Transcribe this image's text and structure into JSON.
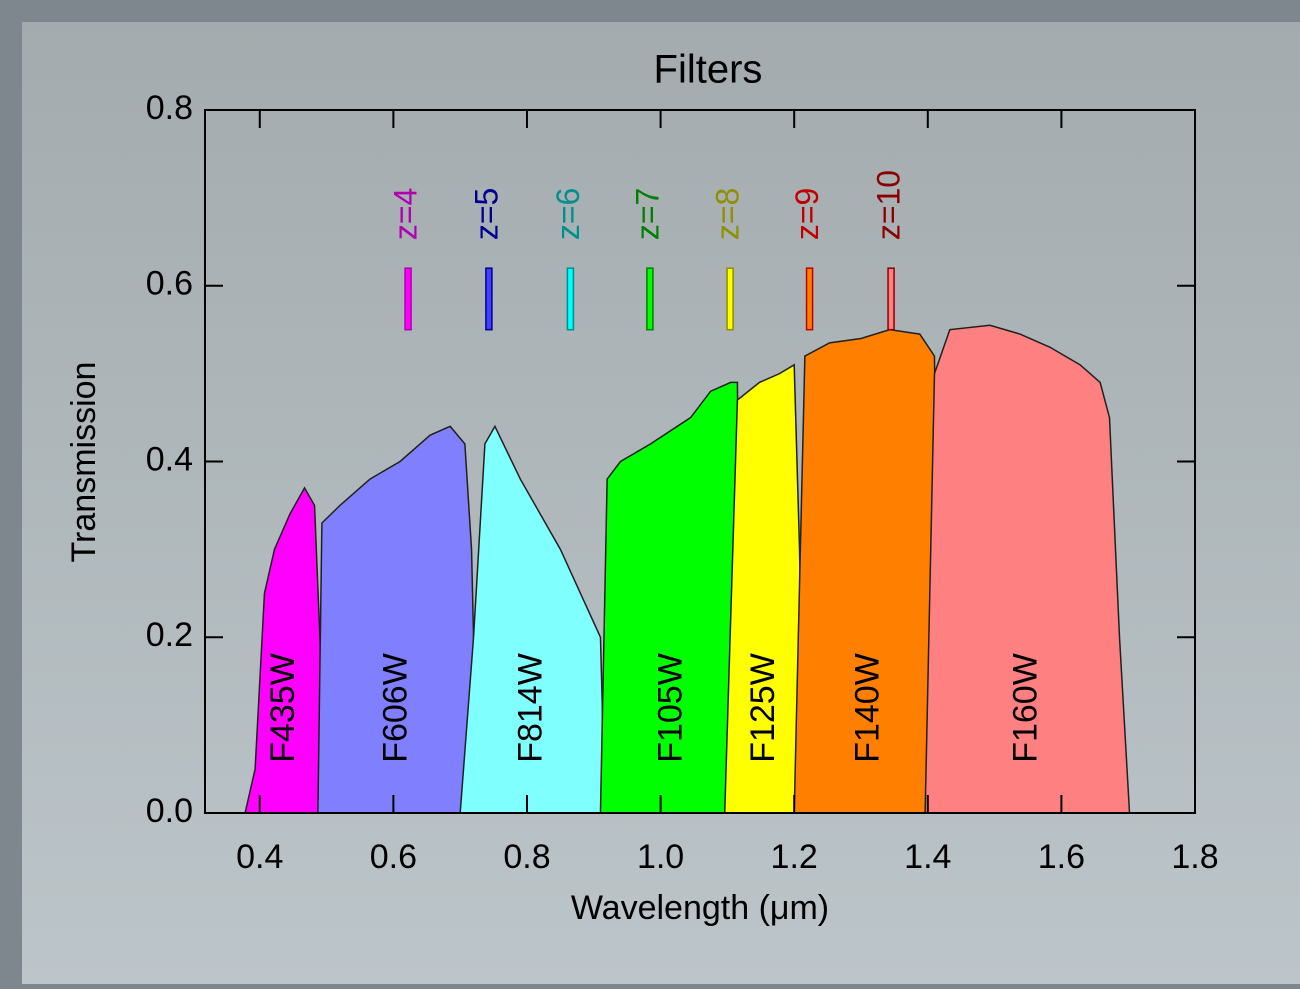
{
  "chart_data": {
    "type": "area",
    "title": "Filters",
    "x_label": "Wavelength (μm)",
    "y_label": "Transmission",
    "xlim": [
      0.318,
      1.8
    ],
    "ylim": [
      0,
      0.8
    ],
    "xticks": [
      0.4,
      0.6,
      0.8,
      {
        "value": 1.0,
        "label": "1.0"
      },
      1.2,
      1.4,
      1.6,
      1.8
    ],
    "yticks": [
      {
        "value": 0,
        "label": "0.0"
      },
      0.2,
      0.4,
      0.6,
      0.8
    ],
    "series": [
      {
        "name": "F435W",
        "color": "#ff00ff",
        "x": [
          0.378,
          0.393,
          0.407,
          0.422,
          0.445,
          0.467,
          0.482,
          0.49,
          0.497
        ],
        "values": [
          0,
          0.05,
          0.25,
          0.3,
          0.34,
          0.37,
          0.35,
          0.2,
          0
        ]
      },
      {
        "name": "F606W",
        "color": "#8080ff",
        "x": [
          0.487,
          0.493,
          0.52,
          0.565,
          0.61,
          0.655,
          0.685,
          0.707,
          0.717,
          0.726
        ],
        "values": [
          0,
          0.33,
          0.35,
          0.38,
          0.4,
          0.43,
          0.44,
          0.42,
          0.3,
          0
        ]
      },
      {
        "name": "F814W",
        "color": "#80ffff",
        "x": [
          0.7,
          0.72,
          0.737,
          0.752,
          0.79,
          0.85,
          0.91,
          0.917
        ],
        "values": [
          0,
          0.2,
          0.42,
          0.44,
          0.38,
          0.3,
          0.2,
          0
        ]
      },
      {
        "name": "F105W",
        "color": "#00ff00",
        "x": [
          0.91,
          0.92,
          0.94,
          0.985,
          1.045,
          1.075,
          1.105,
          1.115,
          1.118,
          1.125
        ],
        "values": [
          0,
          0.38,
          0.4,
          0.42,
          0.45,
          0.48,
          0.49,
          0.49,
          0.2,
          0
        ]
      },
      {
        "name": "F125W",
        "color": "#ffff00",
        "x": [
          1.096,
          1.115,
          1.148,
          1.178,
          1.2,
          1.208,
          1.216
        ],
        "values": [
          0,
          0.47,
          0.49,
          0.5,
          0.51,
          0.3,
          0
        ]
      },
      {
        "name": "F140W",
        "color": "#ff8000",
        "x": [
          1.2,
          1.216,
          1.253,
          1.3,
          1.343,
          1.388,
          1.41,
          1.415,
          1.425
        ],
        "values": [
          0,
          0.52,
          0.535,
          0.54,
          0.55,
          0.545,
          0.52,
          0.2,
          0
        ]
      },
      {
        "name": "F160W",
        "color": "#ff8080",
        "x": [
          1.396,
          1.41,
          1.433,
          1.493,
          1.538,
          1.583,
          1.628,
          1.658,
          1.672,
          1.687,
          1.702
        ],
        "values": [
          0,
          0.5,
          0.55,
          0.555,
          0.545,
          0.53,
          0.51,
          0.49,
          0.45,
          0.2,
          0
        ]
      }
    ],
    "marker_span": [
      0.55,
      0.62
    ],
    "markers": [
      {
        "label": "z=4",
        "x": 0.622,
        "color": "#b000b0",
        "fill": "#ff00ff"
      },
      {
        "label": "z=5",
        "x": 0.743,
        "color": "#000090",
        "fill": "#4040ff"
      },
      {
        "label": "z=6",
        "x": 0.865,
        "color": "#008f8f",
        "fill": "#00ffff"
      },
      {
        "label": "z=7",
        "x": 0.984,
        "color": "#008000",
        "fill": "#00ff00"
      },
      {
        "label": "z=8",
        "x": 1.104,
        "color": "#8f8f00",
        "fill": "#ffff00"
      },
      {
        "label": "z=9",
        "x": 1.223,
        "color": "#c00000",
        "fill": "#ff8000"
      },
      {
        "label": "z=10",
        "x": 1.345,
        "color": "#8b0000",
        "fill": "#ff8080"
      }
    ]
  }
}
